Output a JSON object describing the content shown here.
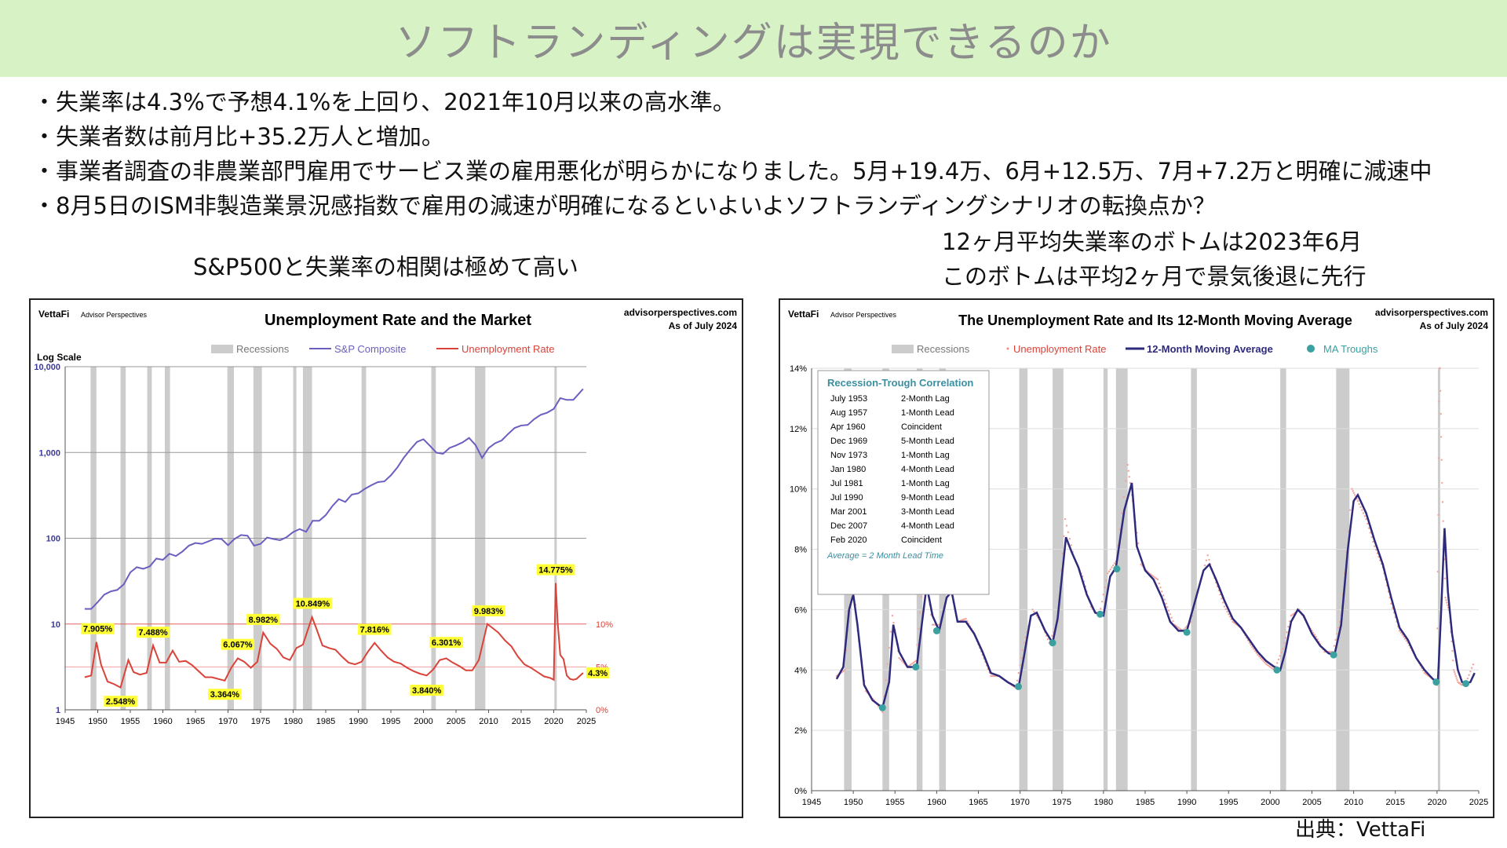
{
  "slide": {
    "title": "ソフトランディングは実現できるのか",
    "bullets": [
      "失業率は4.3%で予想4.1%を上回り、2021年10月以来の高水準。",
      "失業者数は前月比+35.2万人と増加。",
      "事業者調査の非農業部門雇用でサービス業の雇用悪化が明らかになりました。5月+19.4万、6月+12.5万、7月+7.2万と明確に減速中",
      "8月5日のISM非製造業景況感指数で雇用の減速が明確になるといよいよソフトランディングシナリオの転換点か？"
    ],
    "left_caption": "S&P500と失業率の相関は極めて高い",
    "right_caption_line1": "12ヶ月平均失業率のボトムは2023年6月",
    "right_caption_line2": "このボトムは平均2ヶ月で景気後退に先行",
    "source": "出典：VettaFi"
  },
  "colors": {
    "title_bg": "#d7f3c5",
    "recession": "#cccccc",
    "sp": "#6a5fc0",
    "unemp": "#d9433a",
    "ma": "#2e2a7c",
    "trough": "#3aa0a0",
    "label_bg": "#ffff33"
  },
  "chart_data": [
    {
      "type": "line",
      "logo": "VettaFi",
      "logo_sub": "Advisor Perspectives",
      "title": "Unemployment Rate and the Market",
      "site": "advisorperspectives.com",
      "asof": "As of July 2024",
      "scale_note": "Log Scale",
      "legend": [
        "Recessions",
        "S&P Composite",
        "Unemployment Rate"
      ],
      "x_ticks": [
        "1945",
        "1950",
        "1955",
        "1960",
        "1965",
        "1970",
        "1975",
        "1980",
        "1985",
        "1990",
        "1995",
        "2000",
        "2005",
        "2010",
        "2015",
        "2020",
        "2025"
      ],
      "y_left_ticks": [
        "1",
        "10",
        "100",
        "1,000",
        "10,000"
      ],
      "y_right_ticks": [
        "0%",
        "5%",
        "10%"
      ],
      "xlim": [
        1945,
        2025
      ],
      "recessions": [
        [
          1948.9,
          1949.8
        ],
        [
          1953.5,
          1954.3
        ],
        [
          1957.6,
          1958.3
        ],
        [
          1960.3,
          1961.1
        ],
        [
          1969.9,
          1970.9
        ],
        [
          1973.9,
          1975.2
        ],
        [
          1980.0,
          1980.5
        ],
        [
          1981.5,
          1982.9
        ],
        [
          1990.5,
          1991.2
        ],
        [
          2001.2,
          2001.9
        ],
        [
          2007.9,
          2009.5
        ],
        [
          2020.1,
          2020.3
        ]
      ],
      "sp_series": {
        "x": [
          1948,
          1949,
          1950,
          1951,
          1952,
          1953,
          1954,
          1955,
          1956,
          1957,
          1958,
          1959,
          1960,
          1961,
          1962,
          1963,
          1964,
          1965,
          1966,
          1967,
          1968,
          1969,
          1970,
          1971,
          1972,
          1973,
          1974,
          1975,
          1976,
          1977,
          1978,
          1979,
          1980,
          1981,
          1982,
          1983,
          1984,
          1985,
          1986,
          1987,
          1988,
          1989,
          1990,
          1991,
          1992,
          1993,
          1994,
          1995,
          1996,
          1997,
          1998,
          1999,
          2000,
          2001,
          2002,
          2003,
          2004,
          2005,
          2006,
          2007,
          2008,
          2009,
          2010,
          2011,
          2012,
          2013,
          2014,
          2015,
          2016,
          2017,
          2018,
          2019,
          2020,
          2021,
          2022,
          2023,
          2024.5
        ],
        "y": [
          15,
          15,
          18,
          22,
          24,
          25,
          29,
          40,
          46,
          44,
          47,
          58,
          56,
          66,
          62,
          70,
          82,
          88,
          86,
          92,
          99,
          98,
          83,
          98,
          109,
          107,
          82,
          86,
          102,
          98,
          95,
          103,
          118,
          128,
          119,
          160,
          160,
          186,
          236,
          286,
          265,
          323,
          334,
          376,
          415,
          451,
          460,
          541,
          670,
          873,
          1085,
          1327,
          1427,
          1194,
          993,
          965,
          1130,
          1207,
          1310,
          1477,
          1220,
          865,
          1123,
          1282,
          1379,
          1643,
          1931,
          2061,
          2094,
          2449,
          2746,
          2913,
          3218,
          4297,
          4100,
          4100,
          5500
        ]
      },
      "unemp_series": {
        "x": [
          1948,
          1949,
          1949.8,
          1950.5,
          1951.5,
          1952.5,
          1953.5,
          1954.7,
          1955.5,
          1956.5,
          1957.5,
          1958.5,
          1959.5,
          1960.5,
          1961.5,
          1962.5,
          1963.5,
          1964.5,
          1965.5,
          1966.5,
          1967.5,
          1968.5,
          1969.5,
          1970.5,
          1971.5,
          1972.5,
          1973.5,
          1974.5,
          1975.4,
          1976.5,
          1977.5,
          1978.5,
          1979.5,
          1980.5,
          1981.5,
          1982.9,
          1983.5,
          1984.5,
          1985.5,
          1986.5,
          1987.5,
          1988.5,
          1989.5,
          1990.5,
          1991.5,
          1992.5,
          1993.5,
          1994.5,
          1995.5,
          1996.5,
          1997.5,
          1998.5,
          1999.5,
          2000.5,
          2001.5,
          2002.5,
          2003.5,
          2004.5,
          2005.5,
          2006.5,
          2007.5,
          2008.5,
          2009.8,
          2010.5,
          2011.5,
          2012.5,
          2013.5,
          2014.5,
          2015.5,
          2016.5,
          2017.5,
          2018.5,
          2019.5,
          2020.0,
          2020.3,
          2020.6,
          2021.0,
          2021.5,
          2022.0,
          2022.5,
          2023.0,
          2023.5,
          2024.5
        ],
        "y": [
          3.8,
          4.0,
          7.9,
          5.3,
          3.3,
          3.0,
          2.6,
          5.8,
          4.4,
          4.1,
          4.3,
          7.5,
          5.5,
          5.5,
          6.9,
          5.6,
          5.7,
          5.2,
          4.5,
          3.8,
          3.8,
          3.6,
          3.4,
          4.9,
          6.0,
          5.6,
          4.9,
          5.6,
          9.0,
          7.7,
          7.1,
          6.1,
          5.8,
          7.2,
          7.6,
          10.8,
          9.6,
          7.5,
          7.2,
          7.0,
          6.2,
          5.5,
          5.3,
          5.6,
          6.8,
          7.8,
          6.9,
          6.1,
          5.6,
          5.4,
          4.9,
          4.5,
          4.2,
          4.0,
          4.7,
          5.8,
          6.0,
          5.5,
          5.1,
          4.6,
          4.6,
          5.8,
          10.0,
          9.6,
          9.0,
          8.1,
          7.4,
          6.2,
          5.3,
          4.9,
          4.4,
          3.9,
          3.7,
          3.5,
          14.775,
          10.2,
          6.4,
          5.9,
          4.0,
          3.6,
          3.5,
          3.6,
          4.3
        ]
      },
      "peak_labels": [
        {
          "x": 1950,
          "y": 7.9,
          "text": "7.905%",
          "pos": "above"
        },
        {
          "x": 1953.5,
          "y": 2.548,
          "text": "2.548%",
          "pos": "below"
        },
        {
          "x": 1958.5,
          "y": 7.488,
          "text": "7.488%",
          "pos": "above"
        },
        {
          "x": 1969.5,
          "y": 3.364,
          "text": "3.364%",
          "pos": "below"
        },
        {
          "x": 1971.5,
          "y": 6.067,
          "text": "6.067%",
          "pos": "above"
        },
        {
          "x": 1975.4,
          "y": 8.982,
          "text": "8.982%",
          "pos": "above"
        },
        {
          "x": 1983,
          "y": 10.849,
          "text": "10.849%",
          "pos": "above"
        },
        {
          "x": 1992.5,
          "y": 7.816,
          "text": "7.816%",
          "pos": "above"
        },
        {
          "x": 2000.5,
          "y": 3.84,
          "text": "3.840%",
          "pos": "below"
        },
        {
          "x": 2003.5,
          "y": 6.301,
          "text": "6.301%",
          "pos": "above"
        },
        {
          "x": 2010,
          "y": 9.983,
          "text": "9.983%",
          "pos": "above"
        },
        {
          "x": 2020.3,
          "y": 14.775,
          "text": "14.775%",
          "pos": "above"
        },
        {
          "x": 2024.5,
          "y": 4.3,
          "text": "4.3%",
          "pos": "right"
        }
      ]
    },
    {
      "type": "line",
      "logo": "VettaFi",
      "logo_sub": "Advisor Perspectives",
      "title": "The Unemployment Rate and Its 12-Month Moving Average",
      "site": "advisorperspectives.com",
      "asof": "As of July 2024",
      "legend": [
        "Recessions",
        "Unemployment Rate",
        "12-Month Moving Average",
        "MA Troughs"
      ],
      "x_ticks": [
        "1945",
        "1950",
        "1955",
        "1960",
        "1965",
        "1970",
        "1975",
        "1980",
        "1985",
        "1990",
        "1995",
        "2000",
        "2005",
        "2010",
        "2015",
        "2020",
        "2025"
      ],
      "y_ticks": [
        "0%",
        "2%",
        "4%",
        "6%",
        "8%",
        "10%",
        "12%",
        "14%"
      ],
      "xlim": [
        1945,
        2025
      ],
      "ylim": [
        0,
        14
      ],
      "recessions": [
        [
          1948.9,
          1949.8
        ],
        [
          1953.5,
          1954.3
        ],
        [
          1957.6,
          1958.3
        ],
        [
          1960.3,
          1961.1
        ],
        [
          1969.9,
          1970.9
        ],
        [
          1973.9,
          1975.2
        ],
        [
          1980.0,
          1980.5
        ],
        [
          1981.5,
          1982.9
        ],
        [
          1990.5,
          1991.2
        ],
        [
          2001.2,
          2001.9
        ],
        [
          2007.9,
          2009.5
        ],
        [
          2020.1,
          2020.3
        ]
      ],
      "ma_series": {
        "x": [
          1948,
          1948.8,
          1949.5,
          1950.0,
          1950.5,
          1951.3,
          1952.3,
          1953.5,
          1954.3,
          1954.8,
          1955.5,
          1956.5,
          1957.6,
          1958.3,
          1958.8,
          1959.5,
          1960.3,
          1961.2,
          1961.8,
          1962.5,
          1963.5,
          1964.5,
          1965.5,
          1966.5,
          1967.5,
          1968.5,
          1969.8,
          1970.5,
          1971.3,
          1972.0,
          1973.0,
          1973.9,
          1974.5,
          1975.5,
          1976.2,
          1977.0,
          1978.0,
          1979.0,
          1980.0,
          1980.8,
          1981.5,
          1982.5,
          1983.4,
          1984.0,
          1985.0,
          1986.0,
          1987.0,
          1988.0,
          1989.0,
          1990.0,
          1991.0,
          1992.0,
          1992.7,
          1993.5,
          1994.5,
          1995.5,
          1996.5,
          1997.5,
          1998.5,
          1999.5,
          2000.5,
          2001.2,
          2001.8,
          2002.5,
          2003.3,
          2004.0,
          2005.0,
          2006.0,
          2007.0,
          2007.7,
          2008.5,
          2009.3,
          2010.0,
          2010.5,
          2011.5,
          2012.5,
          2013.5,
          2014.5,
          2015.5,
          2016.5,
          2017.5,
          2018.5,
          2019.5,
          2020.1,
          2020.5,
          2020.9,
          2021.3,
          2021.8,
          2022.5,
          2023.0,
          2023.45,
          2024.0,
          2024.5
        ],
        "y": [
          3.7,
          4.1,
          6.0,
          6.5,
          5.5,
          3.5,
          3.0,
          2.75,
          3.6,
          5.5,
          4.6,
          4.1,
          4.1,
          5.7,
          6.8,
          5.8,
          5.3,
          6.4,
          6.6,
          5.6,
          5.6,
          5.2,
          4.6,
          3.9,
          3.8,
          3.6,
          3.4,
          4.5,
          5.8,
          5.9,
          5.3,
          4.9,
          5.7,
          8.4,
          7.9,
          7.4,
          6.5,
          5.9,
          5.8,
          7.1,
          7.4,
          9.3,
          10.2,
          8.1,
          7.3,
          7.0,
          6.4,
          5.6,
          5.3,
          5.3,
          6.3,
          7.3,
          7.5,
          7.0,
          6.3,
          5.7,
          5.4,
          5.0,
          4.6,
          4.3,
          4.1,
          4.0,
          4.6,
          5.6,
          6.0,
          5.8,
          5.2,
          4.8,
          4.55,
          4.5,
          5.5,
          8.0,
          9.6,
          9.8,
          9.2,
          8.3,
          7.5,
          6.4,
          5.4,
          5.0,
          4.4,
          4.0,
          3.7,
          3.6,
          6.0,
          8.7,
          6.6,
          5.2,
          4.0,
          3.6,
          3.55,
          3.6,
          3.9
        ]
      },
      "troughs": {
        "x": [
          1953.5,
          1957.5,
          1960.0,
          1969.8,
          1973.9,
          1979.6,
          1981.6,
          1990.0,
          2000.8,
          2007.6,
          2019.9,
          2023.45
        ],
        "y": [
          2.75,
          4.1,
          5.3,
          3.45,
          4.9,
          5.85,
          7.35,
          5.25,
          4.0,
          4.5,
          3.6,
          3.55
        ]
      },
      "inset": {
        "title": "Recession-Trough Correlation",
        "rows": [
          [
            "July 1953",
            "2-Month Lag"
          ],
          [
            "Aug 1957",
            "1-Month Lead"
          ],
          [
            "Apr 1960",
            "Coincident"
          ],
          [
            "Dec 1969",
            "5-Month Lead"
          ],
          [
            "Nov 1973",
            "1-Month Lag"
          ],
          [
            "Jan 1980",
            "4-Month Lead"
          ],
          [
            "Jul 1981",
            "1-Month Lag"
          ],
          [
            "Jul 1990",
            "9-Month Lead"
          ],
          [
            "Mar 2001",
            "3-Month Lead"
          ],
          [
            "Dec 2007",
            "4-Month Lead"
          ],
          [
            "Feb 2020",
            "Coincident"
          ]
        ],
        "footer": "Average = 2 Month Lead Time"
      }
    }
  ]
}
